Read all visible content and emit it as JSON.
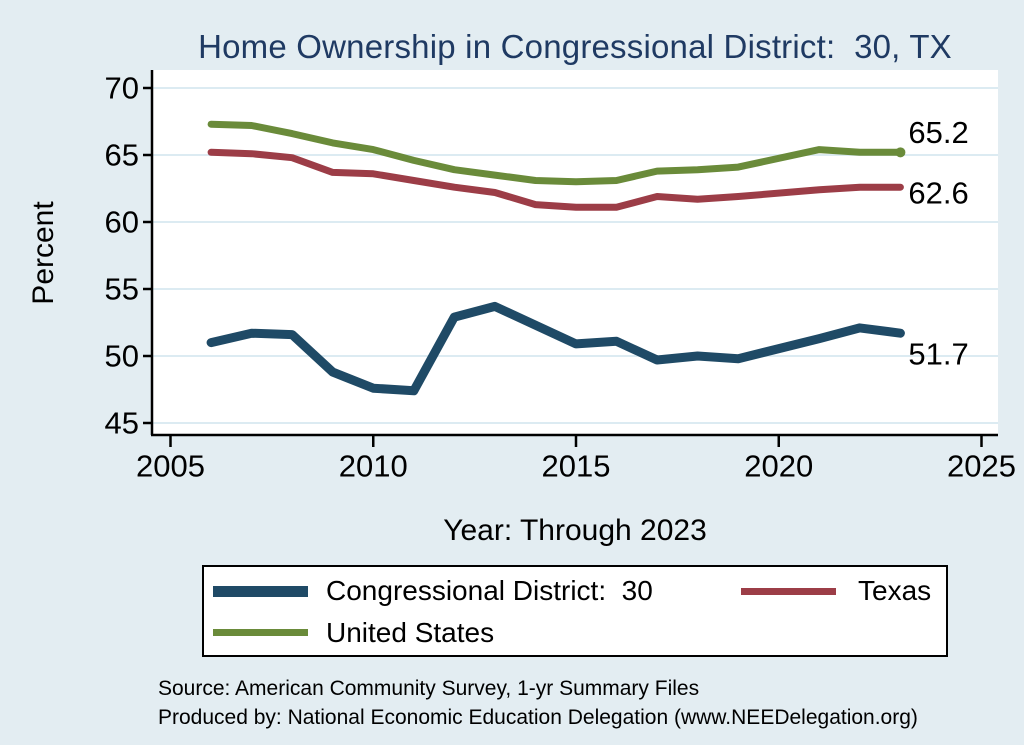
{
  "chart_data": {
    "type": "line",
    "title": "Home Ownership in Congressional District:  30, TX",
    "xlabel": "Year: Through 2023",
    "ylabel": "Percent",
    "xlim": [
      2005,
      2025
    ],
    "ylim": [
      45,
      70
    ],
    "xticks": [
      2005,
      2010,
      2015,
      2020,
      2025
    ],
    "yticks": [
      45,
      50,
      55,
      60,
      65,
      70
    ],
    "grid": "horizontal",
    "legend_position": "bottom",
    "x": [
      2006,
      2007,
      2008,
      2009,
      2010,
      2011,
      2012,
      2013,
      2014,
      2015,
      2016,
      2017,
      2018,
      2019,
      2021,
      2022,
      2023
    ],
    "series": [
      {
        "name": "Congressional District:  30",
        "color": "#1f4a66",
        "line_width": 9,
        "end_label": "51.7",
        "end_dot": false,
        "values": [
          51.0,
          51.7,
          51.6,
          48.8,
          47.6,
          47.4,
          52.9,
          53.7,
          52.3,
          50.9,
          51.1,
          49.7,
          50.0,
          49.8,
          51.3,
          52.1,
          51.7
        ]
      },
      {
        "name": "Texas",
        "color": "#9c3d47",
        "line_width": 7,
        "end_label": "62.6",
        "end_dot": false,
        "values": [
          65.2,
          65.1,
          64.8,
          63.7,
          63.6,
          63.1,
          62.6,
          62.2,
          61.3,
          61.1,
          61.1,
          61.9,
          61.7,
          61.9,
          62.4,
          62.6,
          62.6
        ]
      },
      {
        "name": "United States",
        "color": "#6a8b3a",
        "line_width": 7,
        "end_label": "65.2",
        "end_dot": true,
        "values": [
          67.3,
          67.2,
          66.6,
          65.9,
          65.4,
          64.6,
          63.9,
          63.5,
          63.1,
          63.0,
          63.1,
          63.8,
          63.9,
          64.1,
          65.4,
          65.2,
          65.2
        ]
      }
    ]
  },
  "source": {
    "line1": "Source: American Community Survey, 1-yr Summary Files",
    "line2": "Produced by: National Economic Education Delegation (www.NEEDelegation.org)"
  },
  "colors": {
    "background": "#e3edf2",
    "plot_background": "#ffffff",
    "gridline": "#dcebf2",
    "axis": "#000000",
    "title_text": "#1f3a63",
    "district_line": "#1f4a66",
    "texas_line": "#9c3d47",
    "us_line": "#6a8b3a"
  }
}
